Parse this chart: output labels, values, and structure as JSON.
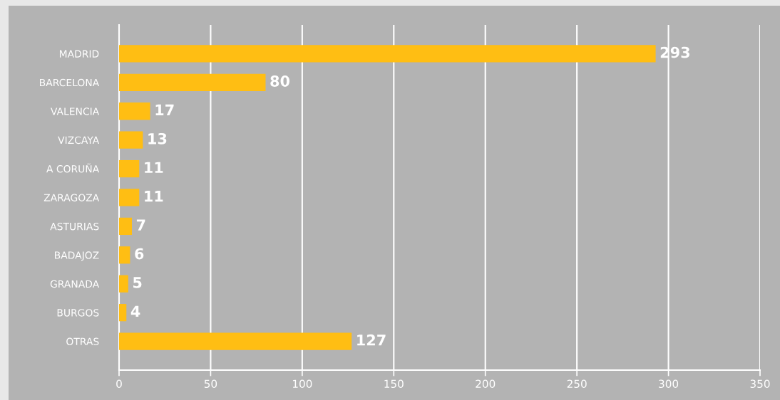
{
  "chart_data": {
    "type": "bar",
    "orientation": "horizontal",
    "categories": [
      "MADRID",
      "BARCELONA",
      "VALENCIA",
      "VIZCAYA",
      "A CORUÑA",
      "ZARAGOZA",
      "ASTURIAS",
      "BADAJOZ",
      "GRANADA",
      "BURGOS",
      "OTRAS"
    ],
    "values": [
      293,
      80,
      17,
      13,
      11,
      11,
      7,
      6,
      5,
      4,
      127
    ],
    "color": "#ffbe13",
    "xlim": [
      0,
      350
    ],
    "xticks": [
      0,
      50,
      100,
      150,
      200,
      250,
      300,
      350
    ],
    "grid": "x",
    "data_labels": true,
    "legend": false
  }
}
